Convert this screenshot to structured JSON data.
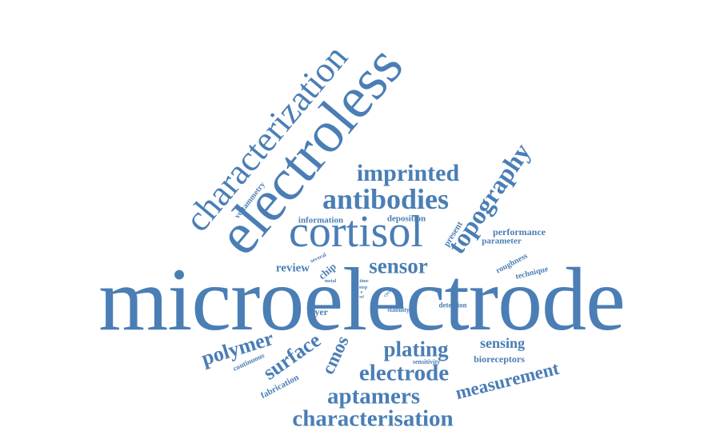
{
  "color": "#4a7eb5",
  "words": [
    "microelectrode",
    "electroless",
    "characterization",
    "cortisol",
    "antibodies",
    "imprinted",
    "topography",
    "sensor",
    "review",
    "polymer",
    "surface",
    "cmos",
    "plating",
    "sensing",
    "electrode",
    "aptamers",
    "measurement",
    "characterisation",
    "voltammetry",
    "information",
    "deposition",
    "present",
    "performance",
    "parameter",
    "roughness",
    "technique",
    "several",
    "chip",
    "metal",
    "time",
    "step",
    "cyclic",
    "stability",
    "detection",
    "layer",
    "continuous",
    "fabrication",
    "sensitivity",
    "bioreceptors",
    "e",
    "sol"
  ]
}
